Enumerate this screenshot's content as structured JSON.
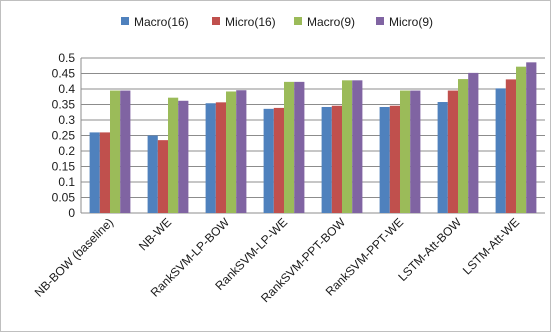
{
  "chart_data": {
    "type": "bar",
    "categories": [
      "NB-BOW (baseline)",
      "NB-WE",
      "RankSVM-LP-BOW",
      "RankSVM-LP-WE",
      "RankSVM-PPT-BOW",
      "RankSVM-PPT-WE",
      "LSTM-Att-BOW",
      "LSTM-Att-WE"
    ],
    "series": [
      {
        "name": "Macro(16)",
        "color": "#4f81bd",
        "values": [
          0.26,
          0.25,
          0.354,
          0.336,
          0.342,
          0.342,
          0.358,
          0.402
        ]
      },
      {
        "name": "Micro(16)",
        "color": "#c0504d",
        "values": [
          0.26,
          0.235,
          0.357,
          0.339,
          0.346,
          0.346,
          0.395,
          0.431
        ]
      },
      {
        "name": "Macro(9)",
        "color": "#9bbb59",
        "values": [
          0.395,
          0.372,
          0.392,
          0.423,
          0.428,
          0.395,
          0.432,
          0.472
        ]
      },
      {
        "name": "Micro(9)",
        "color": "#8064a2",
        "values": [
          0.395,
          0.362,
          0.396,
          0.423,
          0.428,
          0.395,
          0.452,
          0.486
        ]
      }
    ],
    "yticks": [
      "0",
      "0.05",
      "0.1",
      "0.15",
      "0.2",
      "0.25",
      "0.3",
      "0.35",
      "0.4",
      "0.45",
      "0.5"
    ],
    "ylim": [
      0,
      0.5
    ],
    "grid": true,
    "legend_position": "top"
  }
}
